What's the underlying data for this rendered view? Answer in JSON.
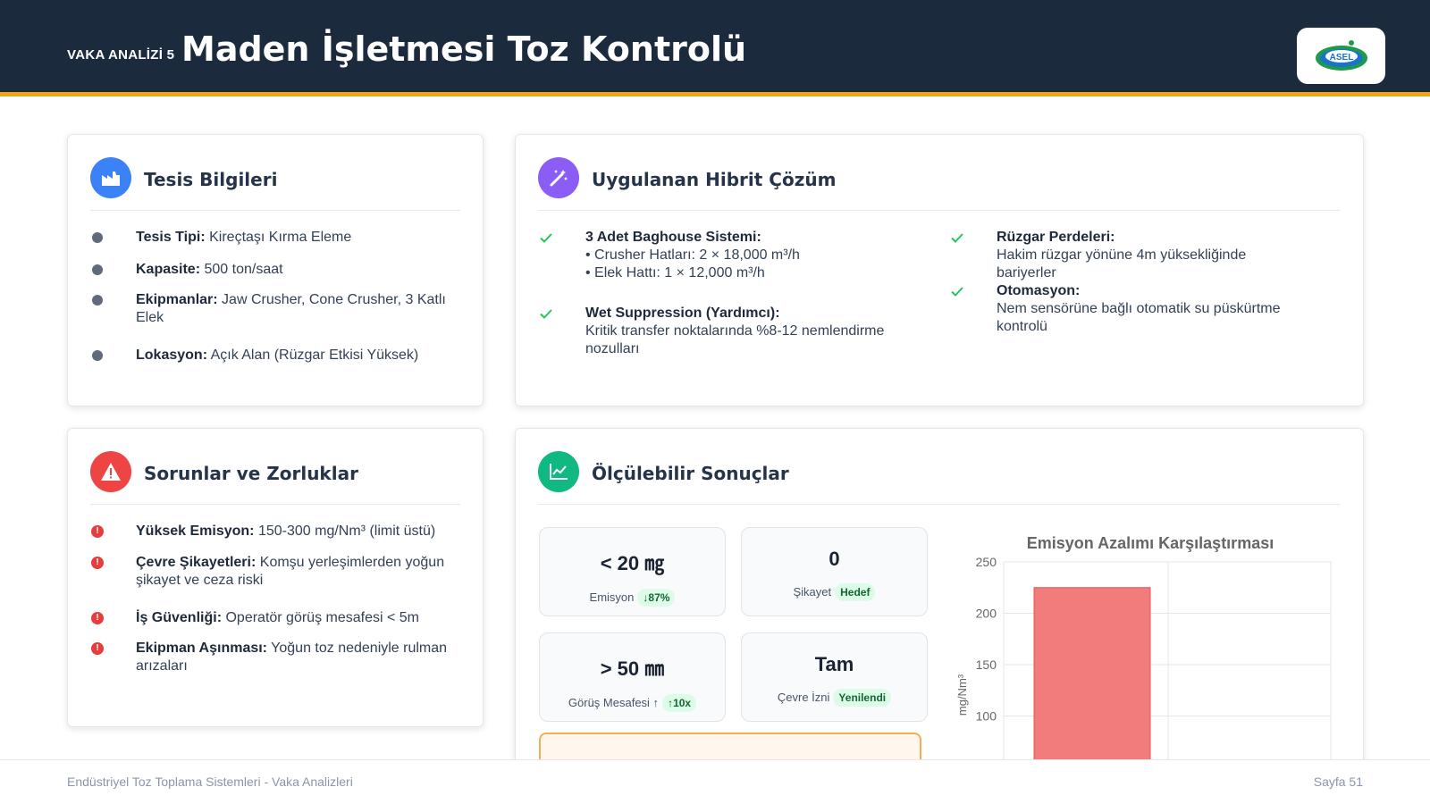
{
  "header": {
    "kicker": "VAKA ANALİZİ 5",
    "title": "Maden İşletmesi Toz Kontrolü",
    "logo_text": "ASEL"
  },
  "facility": {
    "title": "Tesis Bilgileri",
    "items": [
      {
        "label": "Tesis Tipi:",
        "value": "Kireçtaşı Kırma Eleme"
      },
      {
        "label": "Kapasite:",
        "value": "500 ton/saat"
      },
      {
        "label": "Ekipmanlar:",
        "value": "Jaw Crusher, Cone Crusher, 3 Katlı Elek"
      },
      {
        "label": "Lokasyon:",
        "value": "Açık Alan (Rüzgar Etkisi Yüksek)"
      }
    ]
  },
  "solution": {
    "title": "Uygulanan Hibrit Çözüm",
    "left": [
      {
        "label": "3 Adet Baghouse Sistemi:",
        "lines": [
          "• Crusher Hatları: 2 × 18,000 m³/h",
          "• Elek Hattı: 1 × 12,000 m³/h"
        ]
      },
      {
        "label": "Wet Suppression (Yardımcı):",
        "lines": [
          "Kritik transfer noktalarında %8-12 nemlendirme nozulları"
        ]
      }
    ],
    "right": [
      {
        "label": "Rüzgar Perdeleri:",
        "lines": [
          "Hakim rüzgar yönüne 4m yüksekliğinde bariyerler"
        ]
      },
      {
        "label": "Otomasyon:",
        "lines": [
          "Nem sensörüne bağlı otomatik su püskürtme kontrolü"
        ]
      }
    ]
  },
  "problems": {
    "title": "Sorunlar ve Zorluklar",
    "items": [
      {
        "label": "Yüksek Emisyon:",
        "value": "150-300 mg/Nm³ (limit üstü)"
      },
      {
        "label": "Çevre Şikayetleri:",
        "value": "Komşu yerleşimlerden yoğun şikayet ve ceza riski"
      },
      {
        "label": "İş Güvenliği:",
        "value": "Operatör görüş mesafesi < 5m"
      },
      {
        "label": "Ekipman Aşınması:",
        "value": "Yoğun toz nedeniyle rulman arızaları"
      }
    ]
  },
  "results": {
    "title": "Ölçülebilir Sonuçlar",
    "metrics": [
      {
        "value": "< 20 ㎎",
        "label": "Emisyon",
        "tag": "↓87%"
      },
      {
        "value": "0",
        "label": "Şikayet",
        "tag": "Hedef"
      },
      {
        "value": "> 50 ㎜",
        "label": "Görüş Mesafesi ↑",
        "tag": "↑10x"
      },
      {
        "value": "Tam",
        "label": "Çevre İzni",
        "tag": "Yenilendi"
      }
    ]
  },
  "chart_data": {
    "type": "bar",
    "title": "Emisyon Azalımı Karşılaştırması",
    "ylabel": "mg/Nm³",
    "yticks": [
      100,
      150,
      200,
      250
    ],
    "ylim": [
      100,
      250
    ],
    "values": [
      225
    ],
    "bar_color": "#f27b7b",
    "grid": true
  },
  "footer": {
    "left": "Endüstriyel Toz Toplama Sistemleri - Vaka Analizleri",
    "right": "Sayfa 51"
  }
}
